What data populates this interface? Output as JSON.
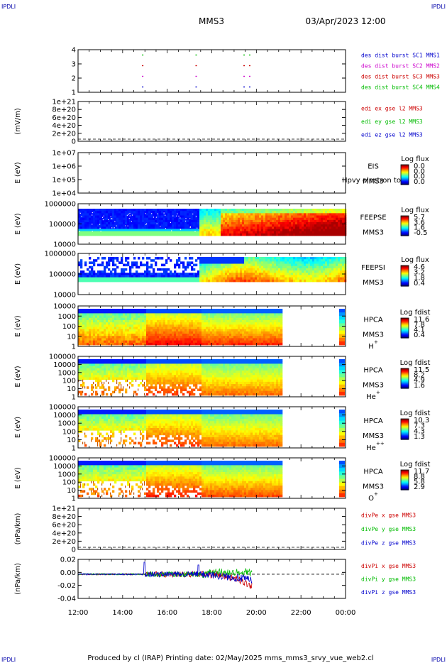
{
  "header": {
    "corner_left": "IPDLI",
    "corner_right": "IPDLI",
    "spacecraft": "MMS3",
    "datetime": "03/Apr/2023 12:00"
  },
  "footer": {
    "corner_left": "IPDLI",
    "corner_right": "IPDLI",
    "text": "Produced by cl (IRAP)   Printing date: 02/May/2025   mms_mms3_srvy_vue_web2.cl"
  },
  "time_axis": {
    "ticks": [
      "12:00",
      "14:00",
      "16:00",
      "18:00",
      "20:00",
      "22:00",
      "00:00"
    ]
  },
  "colors": {
    "blue": "#0000cc",
    "magenta": "#cc00cc",
    "red": "#cc0000",
    "green": "#00bb00"
  },
  "chart_data": [
    {
      "type": "scatter",
      "name": "burst",
      "yticks": [
        "1",
        "2",
        "3",
        "4"
      ],
      "ylim": [
        0.5,
        4.5
      ],
      "legend": [
        {
          "text": "des dist burst SC1 MMS1",
          "color": "#0000cc"
        },
        {
          "text": "des dist burst SC2 MMS2",
          "color": "#cc00cc"
        },
        {
          "text": "des dist burst SC3 MMS3",
          "color": "#cc0000"
        },
        {
          "text": "des dist burst SC4 MMS4",
          "color": "#00bb00"
        }
      ],
      "series": [
        {
          "sc": 1,
          "times_h": [
            14.9,
            17.3,
            19.45,
            19.7
          ],
          "color": "#0000cc"
        },
        {
          "sc": 2,
          "times_h": [
            14.9,
            17.3,
            19.45,
            19.7
          ],
          "color": "#cc00cc"
        },
        {
          "sc": 3,
          "times_h": [
            14.9,
            17.3,
            19.45,
            19.7
          ],
          "color": "#cc0000"
        },
        {
          "sc": 4,
          "times_h": [
            14.9,
            17.3,
            19.45,
            19.7
          ],
          "color": "#00bb00"
        }
      ]
    },
    {
      "type": "line",
      "name": "edi",
      "ylabel": "(mV/m)",
      "yticks": [
        "0",
        "2e+20",
        "4e+20",
        "6e+20",
        "8e+20",
        "1e+21"
      ],
      "legend": [
        {
          "text": "edi ex gse l2 MMS3",
          "color": "#cc0000"
        },
        {
          "text": "edi ey gse l2 MMS3",
          "color": "#00bb00"
        },
        {
          "text": "edi ez gse l2 MMS3",
          "color": "#0000cc"
        }
      ]
    },
    {
      "type": "heatmap",
      "name": "eis",
      "ylabel": "E (eV)",
      "yticks": [
        "1e+04",
        "1e+05",
        "1e+06",
        "1e+07"
      ],
      "label": "EIS",
      "label2": "MMS3",
      "overlap_text": "Hpvy electron to",
      "cbar": {
        "title": "Log flux",
        "ticks": [
          "0.0",
          "0.0",
          "0.0",
          "0.0"
        ]
      }
    },
    {
      "type": "heatmap",
      "name": "feepse",
      "ylabel": "E (eV)",
      "yticks": [
        "10000",
        "100000",
        "1000000"
      ],
      "label": "FEEPSE",
      "label2": "MMS3",
      "cbar": {
        "title": "Log flux",
        "ticks": [
          "5.7",
          "3.6",
          "1.6",
          "-0.5"
        ]
      }
    },
    {
      "type": "heatmap",
      "name": "feepsi",
      "ylabel": "E (eV)",
      "yticks": [
        "10000",
        "100000",
        "1000000"
      ],
      "label": "FEEPSI",
      "label2": "MMS3",
      "cbar": {
        "title": "Log flux",
        "ticks": [
          "4.6",
          "3.2",
          "1.8",
          "0.4"
        ]
      }
    },
    {
      "type": "heatmap",
      "name": "hpca_h",
      "ylabel": "E (eV)",
      "yticks": [
        "1",
        "10",
        "100",
        "1000",
        "10000"
      ],
      "label": "HPCA",
      "label2": "MMS3",
      "species": "H",
      "charge": "+",
      "cbar": {
        "title": "Log fdist",
        "ticks": [
          "11.6",
          "7.8",
          "4.1",
          "0.4"
        ]
      }
    },
    {
      "type": "heatmap",
      "name": "hpca_he",
      "ylabel": "E (eV)",
      "yticks": [
        "1",
        "10",
        "100",
        "1000",
        "10000",
        "100000"
      ],
      "label": "HPCA",
      "label2": "MMS3",
      "species": "He",
      "charge": "+",
      "cbar": {
        "title": "Log fdist",
        "ticks": [
          "11.5",
          "8.2",
          "4.9",
          "1.6"
        ]
      }
    },
    {
      "type": "heatmap",
      "name": "hpca_hepp",
      "ylabel": "E (eV)",
      "yticks": [
        "1",
        "10",
        "100",
        "1000",
        "10000",
        "100000"
      ],
      "label": "HPCA",
      "label2": "MMS3",
      "species": "He",
      "charge": "++",
      "cbar": {
        "title": "Log fdist",
        "ticks": [
          "10.3",
          "7.3",
          "4.3",
          "1.3"
        ]
      }
    },
    {
      "type": "heatmap",
      "name": "hpca_o",
      "ylabel": "E (eV)",
      "yticks": [
        "1",
        "10",
        "100",
        "1000",
        "10000",
        "100000"
      ],
      "label": "HPCA",
      "label2": "MMS3",
      "species": "O",
      "charge": "+",
      "cbar": {
        "title": "Log fdist",
        "ticks": [
          "11.7",
          "8.8",
          "5.8",
          "2.9"
        ]
      }
    },
    {
      "type": "line",
      "name": "divpe",
      "ylabel": "(nPa/km)",
      "yticks": [
        "0",
        "2e+20",
        "4e+20",
        "6e+20",
        "8e+20",
        "1e+21"
      ],
      "legend": [
        {
          "text": "divPe x gse MMS3",
          "color": "#cc0000"
        },
        {
          "text": "divPe y gse MMS3",
          "color": "#00bb00"
        },
        {
          "text": "divPe z gse MMS3",
          "color": "#0000cc"
        }
      ]
    },
    {
      "type": "line",
      "name": "divpi",
      "ylabel": "(nPa/km)",
      "yticks": [
        "-0.04",
        "-0.02",
        "0.00",
        "0.02"
      ],
      "ylim": [
        -0.052,
        0.032
      ],
      "legend": [
        {
          "text": "divPi x gse MMS3",
          "color": "#cc0000"
        },
        {
          "text": "divPi y gse MMS3",
          "color": "#00bb00"
        },
        {
          "text": "divPi z gse MMS3",
          "color": "#0000cc"
        }
      ]
    }
  ]
}
